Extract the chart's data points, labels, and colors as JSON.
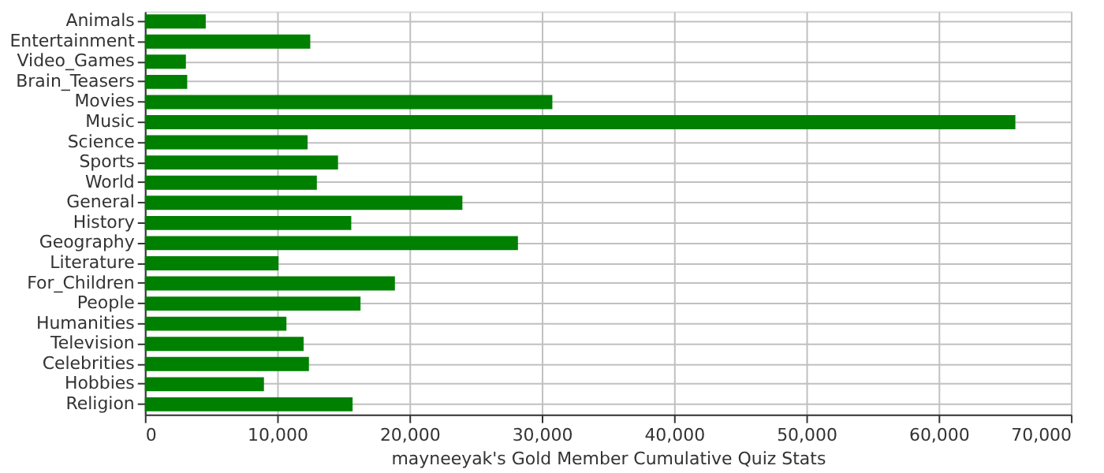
{
  "chart_data": {
    "type": "bar",
    "orientation": "horizontal",
    "xlabel": "mayneeyak's Gold Member Cumulative Quiz Stats",
    "categories": [
      "Animals",
      "Entertainment",
      "Video_Games",
      "Brain_Teasers",
      "Movies",
      "Music",
      "Science",
      "Sports",
      "World",
      "General",
      "History",
      "Geography",
      "Literature",
      "For_Children",
      "People",
      "Humanities",
      "Television",
      "Celebrities",
      "Hobbies",
      "Religion"
    ],
    "values": [
      4600,
      12500,
      3100,
      3200,
      30800,
      65800,
      12300,
      14600,
      13000,
      24000,
      15600,
      28200,
      10100,
      18900,
      16300,
      10700,
      12000,
      12400,
      9000,
      15700
    ],
    "color": "#008000",
    "xlim": [
      0,
      70000
    ],
    "xticks": [
      0,
      {
        "value": 10000,
        "label": "10,000"
      },
      {
        "value": 20000,
        "label": "20,000"
      },
      {
        "value": 30000,
        "label": "30,000"
      },
      {
        "value": 40000,
        "label": "40,000"
      },
      {
        "value": 50000,
        "label": "50,000"
      },
      {
        "value": 60000,
        "label": "60,000"
      },
      {
        "value": 70000,
        "label": "70,000"
      }
    ],
    "grid": true
  }
}
